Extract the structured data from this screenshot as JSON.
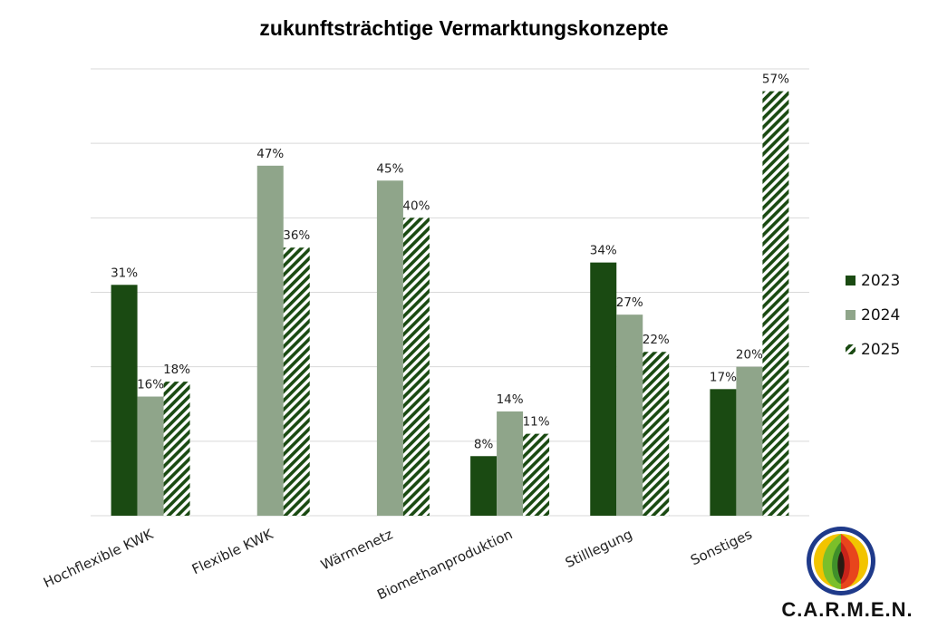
{
  "chart_data": {
    "type": "bar",
    "title": "zukunftsträchtige Vermarktungskonzepte",
    "categories": [
      "Hochflexible KWK",
      "Flexible KWK",
      "Wärmenetz",
      "Biomethanproduktion",
      "Stilllegung",
      "Sonstiges"
    ],
    "series": [
      {
        "name": "2023",
        "values": [
          31,
          null,
          null,
          8,
          34,
          17
        ],
        "color": "#1a4a12",
        "pattern": "solid"
      },
      {
        "name": "2024",
        "values": [
          16,
          47,
          45,
          14,
          27,
          20
        ],
        "color": "#8fa58a",
        "pattern": "solid"
      },
      {
        "name": "2025",
        "values": [
          18,
          36,
          40,
          11,
          22,
          57
        ],
        "color": "#1a4a12",
        "pattern": "diagonal-stripes"
      }
    ],
    "value_suffix": "%",
    "ylim": [
      0,
      60
    ],
    "grid": true,
    "legend_position": "right"
  },
  "logo": {
    "text": "C.A.R.M.E.N."
  }
}
